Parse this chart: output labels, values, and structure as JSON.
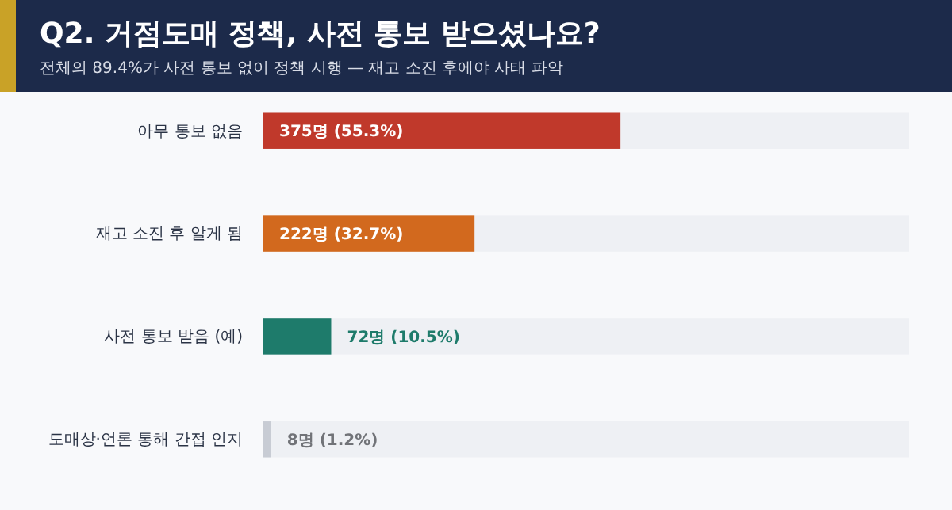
{
  "chart_data": {
    "type": "bar",
    "orientation": "horizontal",
    "title": "Q2. 거점도매 정책, 사전 통보 받으셨나요?",
    "subtitle": "전체의 89.4%가 사전 통보 없이 정책 시행 — 재고 소진 후에야 사태 파악",
    "categories": [
      "아무 통보 없음",
      "재고 소진 후 알게 됨",
      "사전 통보 받음 (예)",
      "도매상·언론 통해 간접 인지"
    ],
    "values": [
      55.3,
      32.7,
      10.5,
      1.2
    ],
    "colors": [
      "#c0392b",
      "#d2691e",
      "#1e7b6b",
      "#c8ccd4"
    ],
    "value_labels": [
      "375명  (55.3%)",
      "222명  (32.7%)",
      "72명  (10.5%)",
      "8명  (1.2%)"
    ],
    "xlim": [
      0,
      100
    ],
    "tick_labels": "y"
  }
}
